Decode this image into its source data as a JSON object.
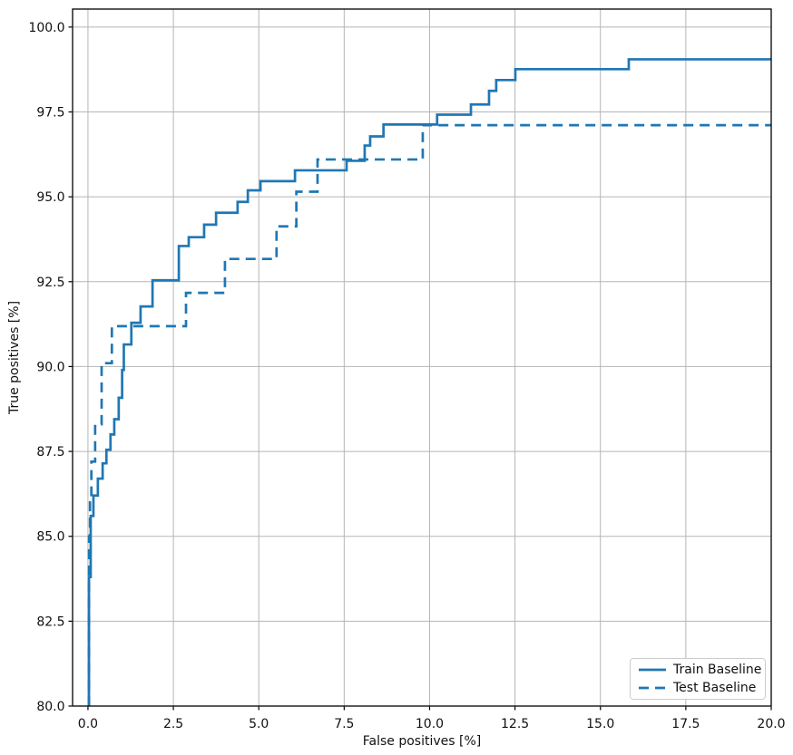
{
  "chart_data": {
    "type": "line",
    "title": "",
    "xlabel": "False positives [%]",
    "ylabel": "True positives [%]",
    "xlim": [
      -0.45,
      20.0
    ],
    "ylim": [
      80.0,
      100.53
    ],
    "x_ticks": [
      0.0,
      2.5,
      5.0,
      7.5,
      10.0,
      12.5,
      15.0,
      17.5,
      20.0
    ],
    "x_tick_labels": [
      "0.0",
      "2.5",
      "5.0",
      "7.5",
      "10.0",
      "12.5",
      "15.0",
      "17.5",
      "20.0"
    ],
    "y_ticks": [
      80.0,
      82.5,
      85.0,
      87.5,
      90.0,
      92.5,
      95.0,
      97.5,
      100.0
    ],
    "y_tick_labels": [
      "80.0",
      "82.5",
      "85.0",
      "87.5",
      "90.0",
      "92.5",
      "95.0",
      "97.5",
      "100.0"
    ],
    "grid": true,
    "legend_position": "lower right",
    "line_color": "#1f77b4",
    "grid_color": "#b5b5b5",
    "spine_color": "#000000",
    "text_color": "#111111",
    "background_color": "#ffffff",
    "series": [
      {
        "name": "Train Baseline",
        "style": "solid",
        "points": [
          [
            0.03,
            80.0
          ],
          [
            0.03,
            83.8
          ],
          [
            0.08,
            83.8
          ],
          [
            0.08,
            85.6
          ],
          [
            0.16,
            85.6
          ],
          [
            0.16,
            86.2
          ],
          [
            0.29,
            86.2
          ],
          [
            0.29,
            86.7
          ],
          [
            0.43,
            86.7
          ],
          [
            0.43,
            87.15
          ],
          [
            0.54,
            87.15
          ],
          [
            0.54,
            87.55
          ],
          [
            0.66,
            87.55
          ],
          [
            0.66,
            88.0
          ],
          [
            0.77,
            88.0
          ],
          [
            0.77,
            88.45
          ],
          [
            0.9,
            88.45
          ],
          [
            0.9,
            89.08
          ],
          [
            1.0,
            89.08
          ],
          [
            1.0,
            89.9
          ],
          [
            1.05,
            89.9
          ],
          [
            1.05,
            90.65
          ],
          [
            1.27,
            90.65
          ],
          [
            1.27,
            91.29
          ],
          [
            1.54,
            91.29
          ],
          [
            1.54,
            91.77
          ],
          [
            1.89,
            91.77
          ],
          [
            1.89,
            92.54
          ],
          [
            2.66,
            92.54
          ],
          [
            2.66,
            93.55
          ],
          [
            2.95,
            93.55
          ],
          [
            2.95,
            93.81
          ],
          [
            3.4,
            93.81
          ],
          [
            3.4,
            94.18
          ],
          [
            3.75,
            94.18
          ],
          [
            3.75,
            94.53
          ],
          [
            4.38,
            94.53
          ],
          [
            4.38,
            94.85
          ],
          [
            4.68,
            94.85
          ],
          [
            4.68,
            95.19
          ],
          [
            5.05,
            95.19
          ],
          [
            5.05,
            95.46
          ],
          [
            6.06,
            95.46
          ],
          [
            6.06,
            95.78
          ],
          [
            7.57,
            95.78
          ],
          [
            7.57,
            96.06
          ],
          [
            8.1,
            96.06
          ],
          [
            8.1,
            96.51
          ],
          [
            8.26,
            96.51
          ],
          [
            8.26,
            96.78
          ],
          [
            8.65,
            96.78
          ],
          [
            8.65,
            97.13
          ],
          [
            10.22,
            97.13
          ],
          [
            10.22,
            97.42
          ],
          [
            11.21,
            97.42
          ],
          [
            11.21,
            97.72
          ],
          [
            11.74,
            97.72
          ],
          [
            11.74,
            98.12
          ],
          [
            11.95,
            98.12
          ],
          [
            11.95,
            98.44
          ],
          [
            12.51,
            98.44
          ],
          [
            12.51,
            98.76
          ],
          [
            15.83,
            98.76
          ],
          [
            15.83,
            99.05
          ],
          [
            20.0,
            99.05
          ]
        ]
      },
      {
        "name": "Test Baseline",
        "style": "dashed",
        "points": [
          [
            0.03,
            80.0
          ],
          [
            0.03,
            85.0
          ],
          [
            0.06,
            85.0
          ],
          [
            0.06,
            86.0
          ],
          [
            0.1,
            86.0
          ],
          [
            0.1,
            87.2
          ],
          [
            0.21,
            87.2
          ],
          [
            0.21,
            88.3
          ],
          [
            0.4,
            88.3
          ],
          [
            0.4,
            90.1
          ],
          [
            0.7,
            90.1
          ],
          [
            0.7,
            91.19
          ],
          [
            2.87,
            91.19
          ],
          [
            2.87,
            92.17
          ],
          [
            4.01,
            92.17
          ],
          [
            4.01,
            93.17
          ],
          [
            5.52,
            93.17
          ],
          [
            5.52,
            94.13
          ],
          [
            6.1,
            94.13
          ],
          [
            6.1,
            95.15
          ],
          [
            6.72,
            95.15
          ],
          [
            6.72,
            96.1
          ],
          [
            9.8,
            96.1
          ],
          [
            9.8,
            97.11
          ],
          [
            20.0,
            97.11
          ]
        ]
      }
    ]
  }
}
